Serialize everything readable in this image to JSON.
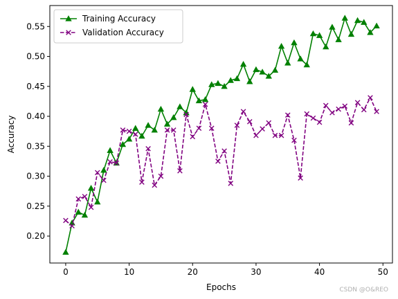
{
  "chart_data": {
    "type": "line",
    "xlabel": "Epochs",
    "ylabel": "Accuracy",
    "xlim": [
      -2.5,
      51.5
    ],
    "ylim": [
      0.155,
      0.585
    ],
    "xticks": [
      0,
      10,
      20,
      30,
      40,
      50
    ],
    "yticks": [
      0.2,
      0.25,
      0.3,
      0.35,
      0.4,
      0.45,
      0.5,
      0.55
    ],
    "grid": false,
    "legend_position": "top-left",
    "x": [
      0,
      1,
      2,
      3,
      4,
      5,
      6,
      7,
      8,
      9,
      10,
      11,
      12,
      13,
      14,
      15,
      16,
      17,
      18,
      19,
      20,
      21,
      22,
      23,
      24,
      25,
      26,
      27,
      28,
      29,
      30,
      31,
      32,
      33,
      34,
      35,
      36,
      37,
      38,
      39,
      40,
      41,
      42,
      43,
      44,
      45,
      46,
      47,
      48,
      49
    ],
    "series": [
      {
        "name": "Training Accuracy",
        "color": "#008000",
        "linestyle": "solid",
        "marker": "triangle-up",
        "values": [
          0.173,
          0.222,
          0.24,
          0.235,
          0.28,
          0.257,
          0.31,
          0.343,
          0.322,
          0.353,
          0.362,
          0.38,
          0.367,
          0.385,
          0.377,
          0.412,
          0.387,
          0.398,
          0.416,
          0.406,
          0.445,
          0.426,
          0.428,
          0.453,
          0.455,
          0.45,
          0.46,
          0.463,
          0.487,
          0.458,
          0.478,
          0.474,
          0.467,
          0.477,
          0.517,
          0.489,
          0.523,
          0.496,
          0.486,
          0.538,
          0.535,
          0.516,
          0.549,
          0.528,
          0.564,
          0.537,
          0.56,
          0.557,
          0.54,
          0.551
        ]
      },
      {
        "name": "Validation Accuracy",
        "color": "#800080",
        "linestyle": "dashed",
        "marker": "x",
        "values": [
          0.226,
          0.217,
          0.262,
          0.266,
          0.248,
          0.306,
          0.293,
          0.324,
          0.322,
          0.377,
          0.375,
          0.37,
          0.29,
          0.346,
          0.285,
          0.3,
          0.377,
          0.377,
          0.309,
          0.403,
          0.366,
          0.38,
          0.42,
          0.38,
          0.325,
          0.342,
          0.288,
          0.385,
          0.408,
          0.391,
          0.368,
          0.379,
          0.389,
          0.368,
          0.368,
          0.402,
          0.36,
          0.297,
          0.404,
          0.397,
          0.39,
          0.418,
          0.406,
          0.412,
          0.417,
          0.389,
          0.423,
          0.411,
          0.431,
          0.408
        ]
      }
    ]
  },
  "watermark": "CSDN @O&REO"
}
